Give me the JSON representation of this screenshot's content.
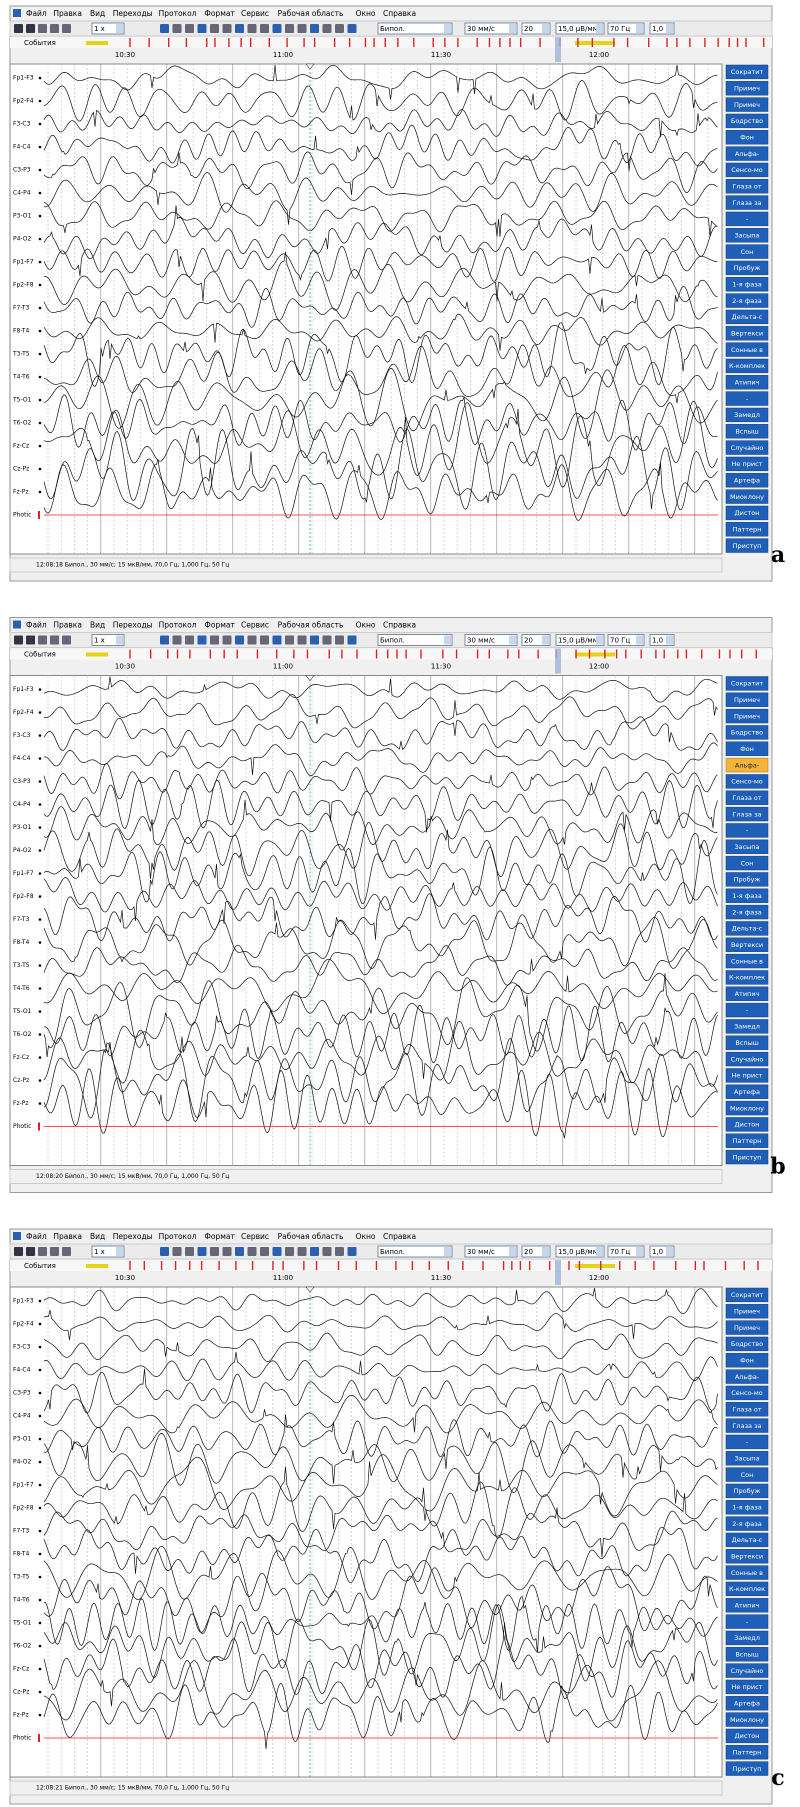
{
  "window": {
    "menu": [
      "Файл",
      "Правка",
      "Вид",
      "Переходы",
      "Протокол",
      "Формат",
      "Сервис",
      "Рабочая область",
      "Окно",
      "Справка"
    ],
    "speed_factor": "1 x",
    "montage": "Бипол.",
    "paper_speed": "30 мм/с",
    "channels_count": "20",
    "sensitivity": "15,0 μВ/мм",
    "hf_filter": "70 Гц",
    "lf_filter": "1,0",
    "events_label": "События",
    "times": [
      "10:30",
      "11:00",
      "11:30",
      "12:00"
    ],
    "channels": [
      "Fp1-F3",
      "Fp2-F4",
      "F3-C3",
      "F4-C4",
      "C3-P3",
      "C4-P4",
      "P3-O1",
      "P4-O2",
      "Fp1-F7",
      "Fp2-F8",
      "F7-T3",
      "F8-T4",
      "T3-T5",
      "T4-T6",
      "T5-O1",
      "T6-O2",
      "Fz-Cz",
      "Cz-Pz",
      "Fz-Pz",
      "Photic"
    ],
    "buttons": [
      "Сократит",
      "Примеч",
      "Примеч",
      "Бодрство",
      "Фон",
      "Альфа-",
      "Сенсо-мо",
      "Глаза от",
      "Глаза за",
      "-",
      "Засыпа",
      "Сон",
      "Пробуж",
      "1-я фаза",
      "2-я фаза",
      "Дельта-с",
      "Вертекси",
      "Сонные в",
      "К-комплек",
      "Атипич",
      "-",
      "Замедл",
      "Вспыш",
      "Случайно",
      "Не прист",
      "Артефа",
      "Миоклону",
      "Дистон",
      "Паттерн",
      "Приступ"
    ]
  },
  "panels": [
    {
      "label": "a",
      "status": "12:08:18 Бипол., 30 мм/с; 15 мкВ/мм, 70,0 Гц, 1,000 Гц, 50 Гц"
    },
    {
      "label": "b",
      "status": "12:08:20 Бипол., 30 мм/с; 15 мкВ/мм, 70,0 Гц, 1,000 Гц, 50 Гц",
      "highlighted_button": 5
    },
    {
      "label": "c",
      "status": "12:08:21 Бипол., 30 мм/с; 15 мкВ/мм, 70,0 Гц, 1,000 Гц, 50 Гц"
    }
  ]
}
